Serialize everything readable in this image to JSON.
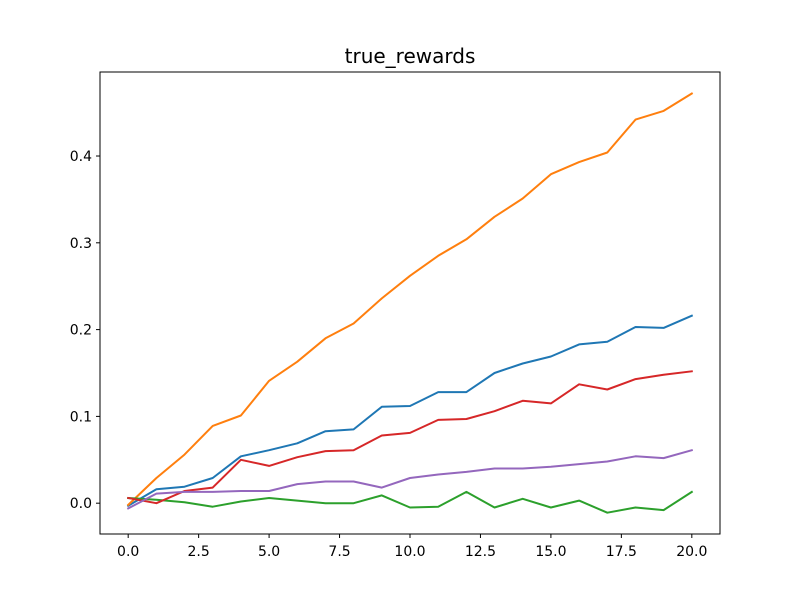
{
  "chart_data": {
    "type": "line",
    "title": "true_rewards",
    "xlabel": "",
    "ylabel": "",
    "xlim": [
      -1.0,
      21.0
    ],
    "ylim": [
      -0.0355,
      0.4968
    ],
    "grid": false,
    "x_ticks": [
      0.0,
      2.5,
      5.0,
      7.5,
      10.0,
      12.5,
      15.0,
      17.5,
      20.0
    ],
    "x_tick_labels": [
      "0.0",
      "2.5",
      "5.0",
      "7.5",
      "10.0",
      "12.5",
      "15.0",
      "17.5",
      "20.0"
    ],
    "y_ticks": [
      0.0,
      0.1,
      0.2,
      0.3,
      0.4
    ],
    "y_tick_labels": [
      "0.0",
      "0.1",
      "0.2",
      "0.3",
      "0.4"
    ],
    "x": [
      0,
      1,
      2,
      3,
      4,
      5,
      6,
      7,
      8,
      9,
      10,
      11,
      12,
      13,
      14,
      15,
      16,
      17,
      18,
      19,
      20
    ],
    "series": [
      {
        "color": "#1f77b4",
        "values": [
          -0.003,
          0.016,
          0.019,
          0.029,
          0.054,
          0.061,
          0.069,
          0.083,
          0.085,
          0.111,
          0.112,
          0.128,
          0.128,
          0.15,
          0.161,
          0.169,
          0.183,
          0.186,
          0.203,
          0.202,
          0.216
        ]
      },
      {
        "color": "#ff7f0e",
        "values": [
          -0.002,
          0.029,
          0.056,
          0.089,
          0.101,
          0.141,
          0.163,
          0.19,
          0.207,
          0.236,
          0.262,
          0.285,
          0.304,
          0.33,
          0.351,
          0.379,
          0.393,
          0.404,
          0.442,
          0.452,
          0.472
        ]
      },
      {
        "color": "#2ca02c",
        "values": [
          0.006,
          0.004,
          0.001,
          -0.004,
          0.002,
          0.006,
          0.003,
          0.0,
          0.0,
          0.009,
          -0.005,
          -0.004,
          0.013,
          -0.005,
          0.005,
          -0.005,
          0.003,
          -0.011,
          -0.005,
          -0.008,
          0.013
        ]
      },
      {
        "color": "#d62728",
        "values": [
          0.006,
          0.0,
          0.014,
          0.018,
          0.05,
          0.043,
          0.053,
          0.06,
          0.061,
          0.078,
          0.081,
          0.096,
          0.097,
          0.106,
          0.118,
          0.115,
          0.137,
          0.131,
          0.143,
          0.148,
          0.152
        ]
      },
      {
        "color": "#9467bd",
        "values": [
          -0.006,
          0.011,
          0.013,
          0.013,
          0.014,
          0.014,
          0.022,
          0.025,
          0.025,
          0.018,
          0.029,
          0.033,
          0.036,
          0.04,
          0.04,
          0.042,
          0.045,
          0.048,
          0.054,
          0.052,
          0.061
        ]
      }
    ]
  }
}
